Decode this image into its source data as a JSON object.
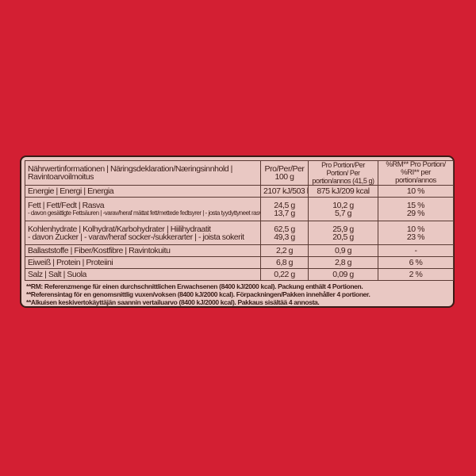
{
  "table": {
    "headers": [
      "Nährwertinformationen | Näringsdeklaration/Næringsinnhold | Ravintoarvoilmoitus",
      "Pro/Per/Per 100 g",
      "Pro Portion/Per Portion/ Per portion/annos (41,5 g)",
      "%RM** Pro Portion/ %RI** per portion/annos"
    ],
    "rows": [
      {
        "label": "Energie | Energi | Energia",
        "per100": "2107 kJ/503 kcal",
        "portion": "875 kJ/209 kcal",
        "ri": "10 %"
      },
      {
        "label": "Fett | Fett/Fedt | Rasva",
        "per100": "24,5 g",
        "portion": "10,2 g",
        "ri": "15 %",
        "sub_label": "- davon gesättigte Fettsäuren | -varav/heraf mättat fett/mettede fedtsyrer | - josta tyydyttyneet rasvat",
        "sub_per100": "13,7 g",
        "sub_portion": "5,7 g",
        "sub_ri": "29 %"
      },
      {
        "label": "Kohlenhydrate | Kolhydrat/Karbohydrater | Hiilihydraatit",
        "per100": "62,5 g",
        "portion": "25,9 g",
        "ri": "10 %",
        "sub_label": "- davon Zucker | - varav/heraf socker-/sukkerarter | - joista sokerit",
        "sub_per100": "49,3 g",
        "sub_portion": "20,5 g",
        "sub_ri": "23 %"
      },
      {
        "label": "Ballaststoffe | Fiber/Kostfibre | Ravintokuitu",
        "per100": "2,2 g",
        "portion": "0,9 g",
        "ri": "-"
      },
      {
        "label": "Eiweiß | Protein | Proteiini",
        "per100": "6,8 g",
        "portion": "2,8 g",
        "ri": "6 %"
      },
      {
        "label": "Salz | Salt | Suola",
        "per100": "0,22 g",
        "portion": "0,09 g",
        "ri": "2 %"
      }
    ],
    "footnotes": [
      "**RM: Referenzmenge für einen durchschnittlichen Erwachsenen (8400 kJ/2000 kcal). Packung enthält 4 Portionen.",
      "**Referensintag för en genomsnittlig vuxen/voksen (8400 kJ/2000 kcal). Förpackningen/Pakken innehåller 4 portioner.",
      "**Alkuisen keskivertokäyttäjän saannin vertailuarvo (8400 kJ/2000 kcal). Pakkaus sisältää 4 annosta."
    ]
  },
  "colors": {
    "background": "#d31f33",
    "panel": "#e9c8c3",
    "text": "#3a1d18"
  }
}
